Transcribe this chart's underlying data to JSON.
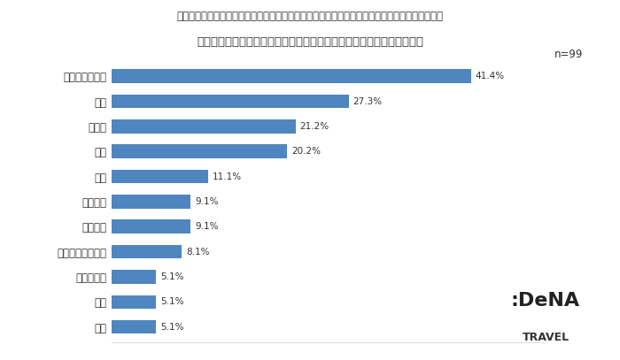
{
  "title_line1": "（勤務先でプレミアムフライデーが「導入された」「異なる条件で導入された」ことがある人）",
  "title_line2": "「プレミアムフライデー」は何をして過ごしましたか？（複数回答可）",
  "n_label": "n=99",
  "categories": [
    "自宅でゆっくり",
    "外食",
    "買い物",
    "仕事",
    "旅行",
    "映画鑑賞",
    "スポーツ",
    "自己メンテナンス",
    "事務手続き",
    "帰省",
    "読書"
  ],
  "values": [
    41.4,
    27.3,
    21.2,
    20.2,
    11.1,
    9.1,
    9.1,
    8.1,
    5.1,
    5.1,
    5.1
  ],
  "bar_color": "#4F86C0",
  "label_color": "#333333",
  "bg_color": "#ffffff",
  "dena_color": "#87CEEB",
  "xlim": [
    0,
    50
  ]
}
